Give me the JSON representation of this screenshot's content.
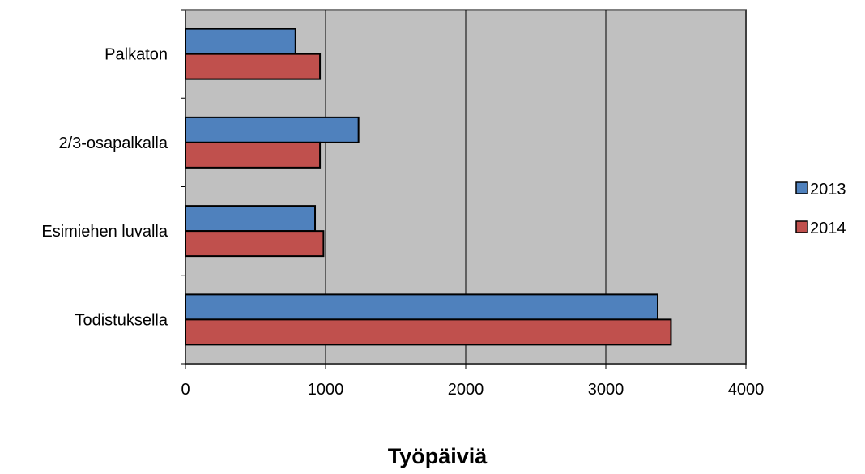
{
  "chart_data": {
    "type": "bar",
    "orientation": "horizontal",
    "categories": [
      "Todistuksella",
      "Esimiehen luvalla",
      "2/3-osapalkalla",
      "Palkaton"
    ],
    "series": [
      {
        "name": "2013",
        "color": "#4f81bd",
        "values": [
          3370,
          925,
          1235,
          785
        ]
      },
      {
        "name": "2014",
        "color": "#c0504d",
        "values": [
          3465,
          985,
          960,
          960
        ]
      }
    ],
    "xlabel": "Työpäiviä",
    "xlim": [
      0,
      4000
    ],
    "xticks": [
      0,
      1000,
      2000,
      3000,
      4000
    ],
    "plot_background": "#c0c0c0",
    "grid": true,
    "legend_position": "right"
  }
}
